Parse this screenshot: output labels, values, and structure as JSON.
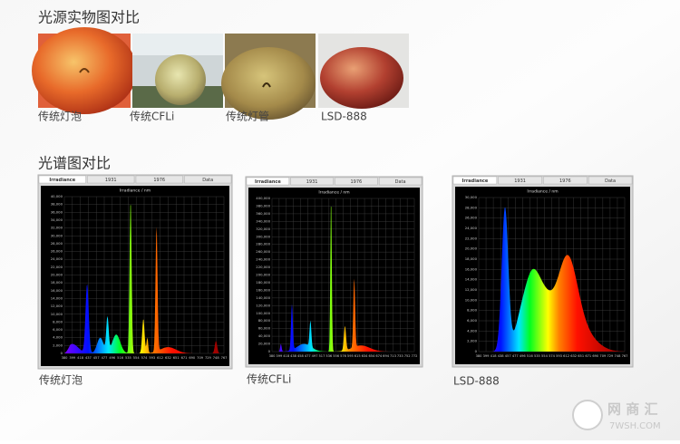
{
  "photo_section": {
    "title": "光源实物图对比",
    "items": [
      {
        "label": "传统灯泡"
      },
      {
        "label": "传统CFLi"
      },
      {
        "label": "传统灯管"
      },
      {
        "label": "LSD-888"
      }
    ]
  },
  "spectrum_section": {
    "title": "光谱图对比",
    "panels": [
      {
        "label": "传统灯泡",
        "tabs": [
          "Irradiance",
          "1931",
          "1976",
          "Data"
        ],
        "plot_title": "Irradiance / nm",
        "yticks": [
          "40,000",
          "38,000",
          "36,000",
          "34,000",
          "32,000",
          "30,000",
          "28,000",
          "26,000",
          "24,000",
          "22,000",
          "20,000",
          "18,000",
          "16,000",
          "14,000",
          "12,000",
          "10,000",
          "8,000",
          "6,000",
          "4,000",
          "2,000",
          "0"
        ],
        "xticks": [
          "380",
          "399",
          "418",
          "437",
          "457",
          "477",
          "496",
          "516",
          "535",
          "554",
          "574",
          "593",
          "612",
          "632",
          "651",
          "671",
          "690",
          "709",
          "729",
          "748",
          "767"
        ]
      },
      {
        "label": "传统CFLi",
        "tabs": [
          "Irradiance",
          "1931",
          "1976",
          "Data"
        ],
        "plot_title": "Irradiance / nm",
        "yticks": [
          "400,000",
          "380,000",
          "360,000",
          "340,000",
          "320,000",
          "300,000",
          "280,000",
          "260,000",
          "240,000",
          "220,000",
          "200,000",
          "180,000",
          "160,000",
          "140,000",
          "120,000",
          "100,000",
          "80,000",
          "60,000",
          "40,000",
          "20,000",
          "0"
        ],
        "xticks": [
          "380",
          "399",
          "418",
          "438",
          "458",
          "477",
          "497",
          "517",
          "536",
          "556",
          "576",
          "595",
          "615",
          "634",
          "654",
          "674",
          "694",
          "713",
          "733",
          "752",
          "772"
        ]
      },
      {
        "label": "LSD-888",
        "tabs": [
          "Irradiance",
          "1931",
          "1976",
          "Data"
        ],
        "plot_title": "Irradiance / nm",
        "yticks": [
          "30,000",
          "28,000",
          "26,000",
          "24,000",
          "22,000",
          "20,000",
          "18,000",
          "16,000",
          "14,000",
          "12,000",
          "10,000",
          "8,000",
          "6,000",
          "4,000",
          "2,000",
          "0"
        ],
        "xticks": [
          "380",
          "399",
          "418",
          "438",
          "457",
          "477",
          "496",
          "516",
          "535",
          "554",
          "574",
          "593",
          "612",
          "632",
          "651",
          "671",
          "690",
          "709",
          "729",
          "748",
          "767"
        ]
      }
    ]
  },
  "watermark": {
    "name": "网 商 汇",
    "url": "7WSH.COM"
  }
}
